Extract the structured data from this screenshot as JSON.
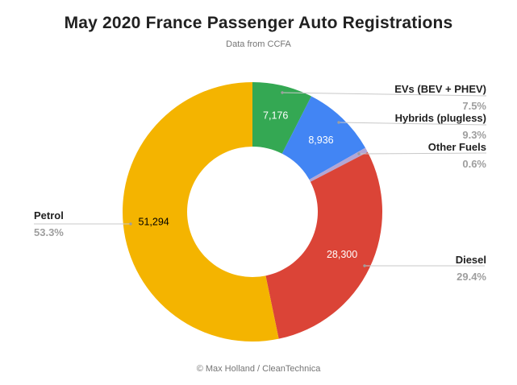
{
  "chart_data": {
    "type": "pie",
    "variant": "donut",
    "title": "May 2020 France Passenger Auto Registrations",
    "subtitle": "Data from CCFA",
    "footer": "© Max Holland / CleanTechnica",
    "legend_position": "labeled-callouts",
    "donut_hole_ratio": 0.5,
    "start_angle_deg": 0,
    "direction": "clockwise",
    "slices": [
      {
        "label": "EVs (BEV + PHEV)",
        "pct": 7.5,
        "pct_label": "7.5%",
        "value": 7176,
        "value_label": "7,176",
        "color": "#34a853",
        "value_label_color": "#ffffff"
      },
      {
        "label": "Hybrids (plugless)",
        "pct": 9.3,
        "pct_label": "9.3%",
        "value": 8936,
        "value_label": "8,936",
        "color": "#4285f4",
        "value_label_color": "#ffffff"
      },
      {
        "label": "Other Fuels",
        "pct": 0.6,
        "pct_label": "0.6%",
        "color": "#b3a6d4"
      },
      {
        "label": "Diesel",
        "pct": 29.4,
        "pct_label": "29.4%",
        "value": 28300,
        "value_label": "28,300",
        "color": "#db4437",
        "value_label_color": "#ffffff"
      },
      {
        "label": "Petrol",
        "pct": 53.3,
        "pct_label": "53.3%",
        "value": 51294,
        "value_label": "51,294",
        "color": "#f4b400",
        "value_label_color": "#000000"
      }
    ]
  }
}
